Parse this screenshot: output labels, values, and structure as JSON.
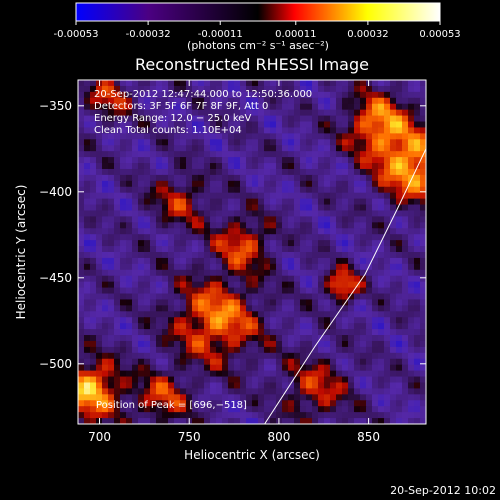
{
  "colorbar": {
    "tick_labels": [
      "-0.00053",
      "-0.00032",
      "-0.00011",
      "0.00011",
      "0.00032",
      "0.00053"
    ],
    "unit_label": "(photons cm⁻² s⁻¹ asec⁻²)",
    "colors": [
      "#0000ff",
      "#4b0082",
      "#000000",
      "#ff0000",
      "#ffff00",
      "#ffffff"
    ]
  },
  "chart_data": {
    "type": "heatmap",
    "title": "Reconstructed RHESSI Image",
    "xlabel": "Heliocentric X (arcsec)",
    "ylabel": "Heliocentric Y (arcsec)",
    "xlim": [
      688,
      882
    ],
    "ylim": [
      -535,
      -335
    ],
    "x_ticks": [
      700,
      750,
      800,
      850
    ],
    "y_ticks": [
      -350,
      -400,
      -450,
      -500
    ],
    "x_tick_labels": [
      "700",
      "750",
      "800",
      "850"
    ],
    "y_tick_labels": [
      "−350",
      "−400",
      "−450",
      "−500"
    ],
    "value_range": [
      -0.00053,
      0.00053
    ],
    "peak": [
      696,
      -518
    ],
    "annotations": [
      "20-Sep-2012 12:47:44.000 to 12:50:36.000",
      "Detectors: 3F 5F 6F 7F 8F 9F, Att 0",
      "Energy Range: 12.0 − 25.0 keV",
      "Clean    Total counts: 1.10E+04"
    ],
    "peak_label": "Position of Peak = [696,−518]",
    "limb_curve": [
      [
        792,
        -535
      ],
      [
        820,
        -490
      ],
      [
        848,
        -448
      ],
      [
        866,
        -410
      ],
      [
        882,
        -375
      ]
    ],
    "sources": [
      {
        "x": 835,
        "y": -455,
        "w": 45,
        "strength": 0.00045
      },
      {
        "x": 780,
        "y": -430,
        "w": 130,
        "strength": 0.00035
      },
      {
        "x": 765,
        "y": -475,
        "w": 300,
        "strength": 0.00045
      },
      {
        "x": 875,
        "y": -385,
        "w": 220,
        "strength": 0.00052
      },
      {
        "x": 855,
        "y": -360,
        "w": 160,
        "strength": 0.00045
      },
      {
        "x": 695,
        "y": -515,
        "w": 150,
        "strength": 0.00055
      },
      {
        "x": 705,
        "y": -345,
        "w": 90,
        "strength": 0.0003
      },
      {
        "x": 735,
        "y": -520,
        "w": 120,
        "strength": 0.00032
      },
      {
        "x": 820,
        "y": -515,
        "w": 180,
        "strength": 0.0003
      },
      {
        "x": 745,
        "y": -405,
        "w": 130,
        "strength": 0.00028
      }
    ]
  },
  "timestamp": "20-Sep-2012 10:02"
}
